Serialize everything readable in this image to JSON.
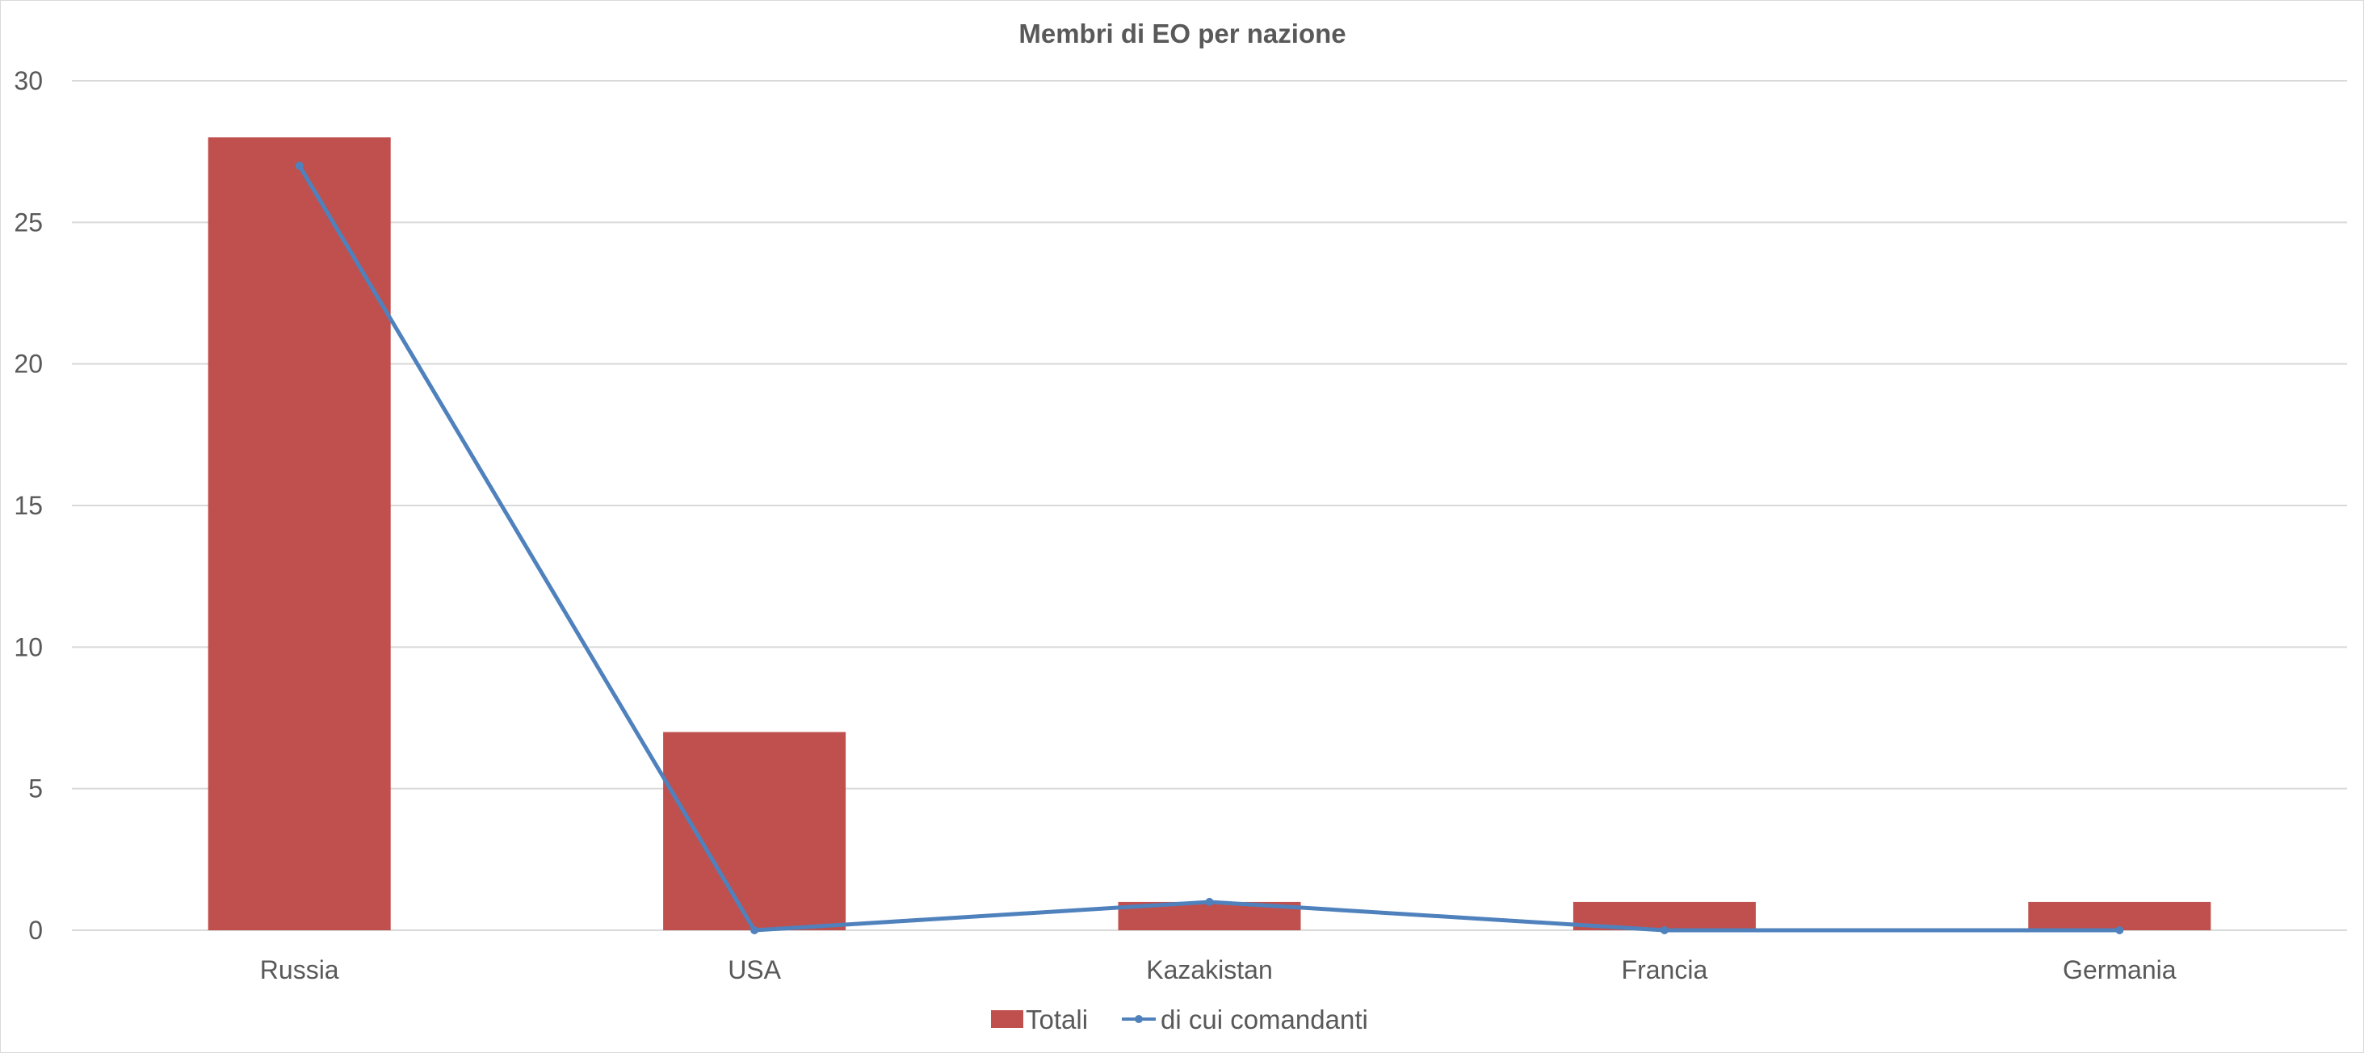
{
  "chart_data": {
    "type": "bar",
    "title": "Membri di EO per nazione",
    "categories": [
      "Russia",
      "USA",
      "Kazakistan",
      "Francia",
      "Germania"
    ],
    "series": [
      {
        "name": "Totali",
        "type": "bar",
        "values": [
          28,
          7,
          1,
          1,
          1
        ]
      },
      {
        "name": "di cui comandanti",
        "type": "line",
        "values": [
          27,
          0,
          1,
          0,
          0
        ]
      }
    ],
    "ylim": [
      0,
      30
    ],
    "yticks": [
      0,
      5,
      10,
      15,
      20,
      25,
      30
    ],
    "grid": true,
    "legend_position": "bottom"
  },
  "colors": {
    "bar": "#C0504D",
    "line": "#4F81BD",
    "grid": "#D9D9D9",
    "text": "#595959"
  }
}
